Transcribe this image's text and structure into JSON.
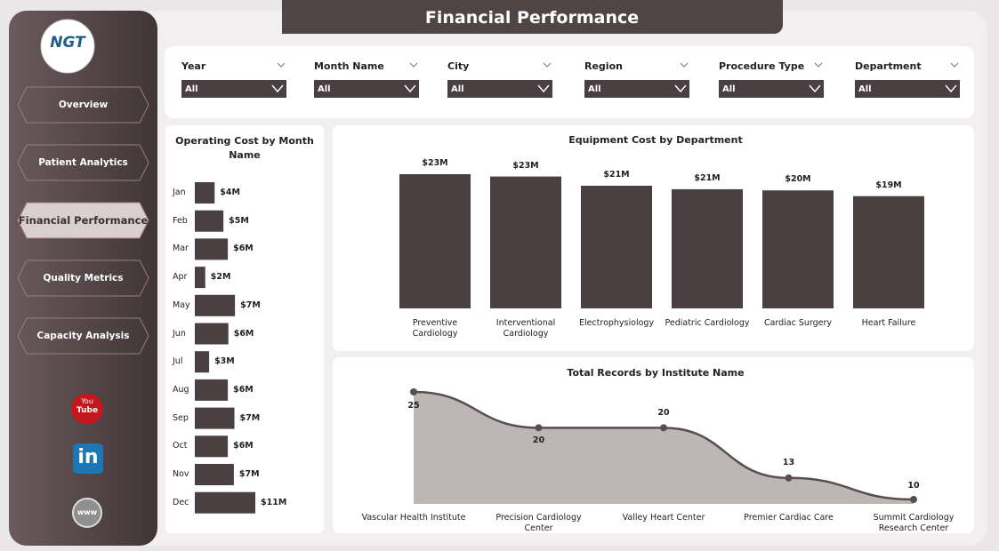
{
  "header": {
    "title": "Financial Performance",
    "logo": "NGT"
  },
  "nav": [
    "Overview",
    "Patient Analytics",
    "Financial Performance",
    "Quality Metrics",
    "Capacity Analysis"
  ],
  "icons": {
    "youtube_top": "You",
    "youtube_bottom": "Tube",
    "linkedin": "in",
    "web": "www"
  },
  "filters": [
    {
      "label": "Year",
      "value": "All"
    },
    {
      "label": "Month Name",
      "value": "All"
    },
    {
      "label": "City",
      "value": "All"
    },
    {
      "label": "Region",
      "value": "All"
    },
    {
      "label": "Procedure Type",
      "value": "All"
    },
    {
      "label": "Department",
      "value": "All"
    }
  ],
  "chart_data": [
    {
      "type": "hbar",
      "title": "Operating Cost by Month Name",
      "color": "#4a3f41",
      "categories": [
        "Jan",
        "Feb",
        "Mar",
        "Apr",
        "May",
        "Jun",
        "Jul",
        "Aug",
        "Sep",
        "Oct",
        "Nov",
        "Dec"
      ],
      "values": [
        3.6,
        5.2,
        6.0,
        1.9,
        7.3,
        6.1,
        2.6,
        6.0,
        7.2,
        6.0,
        7.1,
        11.0
      ],
      "value_labels": [
        "$4M",
        "$5M",
        "$6M",
        "$2M",
        "$7M",
        "$6M",
        "$3M",
        "$6M",
        "$7M",
        "$6M",
        "$7M",
        "$11M"
      ]
    },
    {
      "type": "bar",
      "title": "Equipment Cost by Department",
      "color": "#4a3f41",
      "categories": [
        "Preventive Cardiology",
        "Interventional Cardiology",
        "Electrophysiology",
        "Pediatric Cardiology",
        "Cardiac Surgery",
        "Heart Failure"
      ],
      "values": [
        23.2,
        22.8,
        21.2,
        20.6,
        20.4,
        19.4
      ],
      "value_labels": [
        "$23M",
        "$23M",
        "$21M",
        "$21M",
        "$20M",
        "$19M"
      ]
    },
    {
      "type": "area",
      "title": "Total Records by Institute Name",
      "color": "#5a4c4f",
      "fill": "#bdb6b7",
      "categories": [
        "Vascular Health Institute",
        "Precision Cardiology Center",
        "Valley Heart Center",
        "Premier Cardiac Care",
        "Summit Cardiology Research Center"
      ],
      "values": [
        25,
        20,
        20,
        13,
        10
      ]
    }
  ]
}
